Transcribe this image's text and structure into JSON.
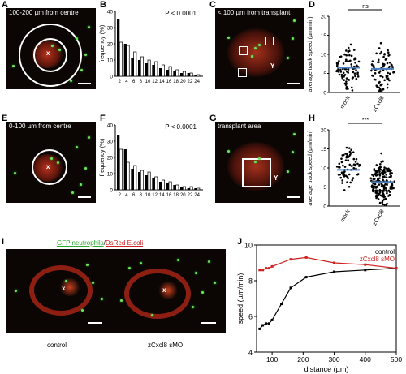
{
  "panels": {
    "A": {
      "label": "A",
      "caption": "100-200 µm from centre",
      "marker": "x"
    },
    "B": {
      "label": "B",
      "pvalue": "P < 0.0001"
    },
    "C": {
      "label": "C",
      "caption": "< 100 µm from transplant",
      "marker": "Y"
    },
    "D": {
      "label": "D",
      "sig": "ns"
    },
    "E": {
      "label": "E",
      "caption": "0-100 µm from centre",
      "marker": "x"
    },
    "F": {
      "label": "F",
      "pvalue": "P < 0.0001"
    },
    "G": {
      "label": "G",
      "caption": "transplant area",
      "marker": "Y"
    },
    "H": {
      "label": "H",
      "sig": "***"
    },
    "I": {
      "label": "I",
      "legend_green": "GFP neutrophils",
      "legend_sep": "/",
      "legend_red": "DsRed E.coli",
      "left_caption": "control",
      "right_caption": "zCxcl8 sMO",
      "marker": "x"
    },
    "J": {
      "label": "J"
    }
  },
  "colors": {
    "green": "#2ea82e",
    "red": "#cc2222",
    "blue": "#4a7fc1",
    "black": "#000000"
  },
  "chart_data": [
    {
      "id": "B",
      "type": "bar",
      "xlabel": "",
      "ylabel": "frequency (%)",
      "ylim": [
        0,
        40
      ],
      "yticks": [
        0,
        10,
        20,
        30,
        40
      ],
      "xticks": [
        2,
        4,
        6,
        8,
        10,
        12,
        14,
        16,
        18,
        20,
        22,
        24
      ],
      "categories": [
        2,
        4,
        6,
        8,
        10,
        12,
        14,
        16,
        18,
        20,
        22,
        24
      ],
      "series": [
        {
          "name": "black",
          "values": [
            35,
            20,
            11,
            10,
            8,
            7,
            5,
            4,
            3,
            2,
            2,
            1
          ]
        },
        {
          "name": "white",
          "values": [
            21,
            19,
            15,
            12,
            10,
            9,
            7,
            6,
            4,
            3,
            2,
            1
          ]
        }
      ]
    },
    {
      "id": "F",
      "type": "bar",
      "xlabel": "",
      "ylabel": "frequency (%)",
      "ylim": [
        0,
        40
      ],
      "yticks": [
        0,
        10,
        20,
        30,
        40
      ],
      "xticks": [
        2,
        4,
        6,
        8,
        10,
        12,
        14,
        16,
        18,
        20,
        22,
        24
      ],
      "categories": [
        2,
        4,
        6,
        8,
        10,
        12,
        14,
        16,
        18,
        20,
        22,
        24
      ],
      "series": [
        {
          "name": "black",
          "values": [
            34,
            25,
            13,
            11,
            9,
            7,
            5,
            4,
            3,
            2,
            1,
            1
          ]
        },
        {
          "name": "white",
          "values": [
            25,
            17,
            15,
            12,
            11,
            8,
            6,
            5,
            3,
            2,
            2,
            1
          ]
        }
      ]
    },
    {
      "id": "D",
      "type": "scatter",
      "ylabel": "average track speed (µm/min)",
      "ylim": [
        0,
        20
      ],
      "yticks": [
        0,
        5,
        10,
        15,
        20
      ],
      "categories": [
        "mock",
        "zCxcl8"
      ],
      "means": [
        6.5,
        6.2
      ],
      "n": [
        85,
        80
      ]
    },
    {
      "id": "H",
      "type": "scatter",
      "ylabel": "average track speed (µm/min)",
      "ylim": [
        0,
        20
      ],
      "yticks": [
        0,
        5,
        10,
        15,
        20
      ],
      "categories": [
        "mock",
        "zCxcl8"
      ],
      "means": [
        9.5,
        6.3
      ],
      "n": [
        70,
        180
      ]
    },
    {
      "id": "J",
      "type": "line",
      "xlabel": "distance (µm)",
      "ylabel": "speed (µm/min)",
      "xlim": [
        50,
        500
      ],
      "ylim": [
        4,
        10
      ],
      "xticks": [
        100,
        200,
        300,
        400,
        500
      ],
      "yticks": [
        4,
        6,
        8,
        10
      ],
      "series": [
        {
          "name": "control",
          "color": "#000000",
          "x": [
            60,
            70,
            80,
            90,
            100,
            130,
            160,
            210,
            300,
            400,
            500
          ],
          "y": [
            5.3,
            5.5,
            5.6,
            5.6,
            5.8,
            6.7,
            7.6,
            8.2,
            8.5,
            8.6,
            8.7
          ]
        },
        {
          "name": "zCxcl8 sMO",
          "color": "#cc2222",
          "x": [
            60,
            70,
            80,
            90,
            100,
            160,
            210,
            300,
            400,
            500
          ],
          "y": [
            8.6,
            8.6,
            8.7,
            8.7,
            8.8,
            9.2,
            9.3,
            9.0,
            8.9,
            8.7
          ]
        }
      ]
    }
  ]
}
